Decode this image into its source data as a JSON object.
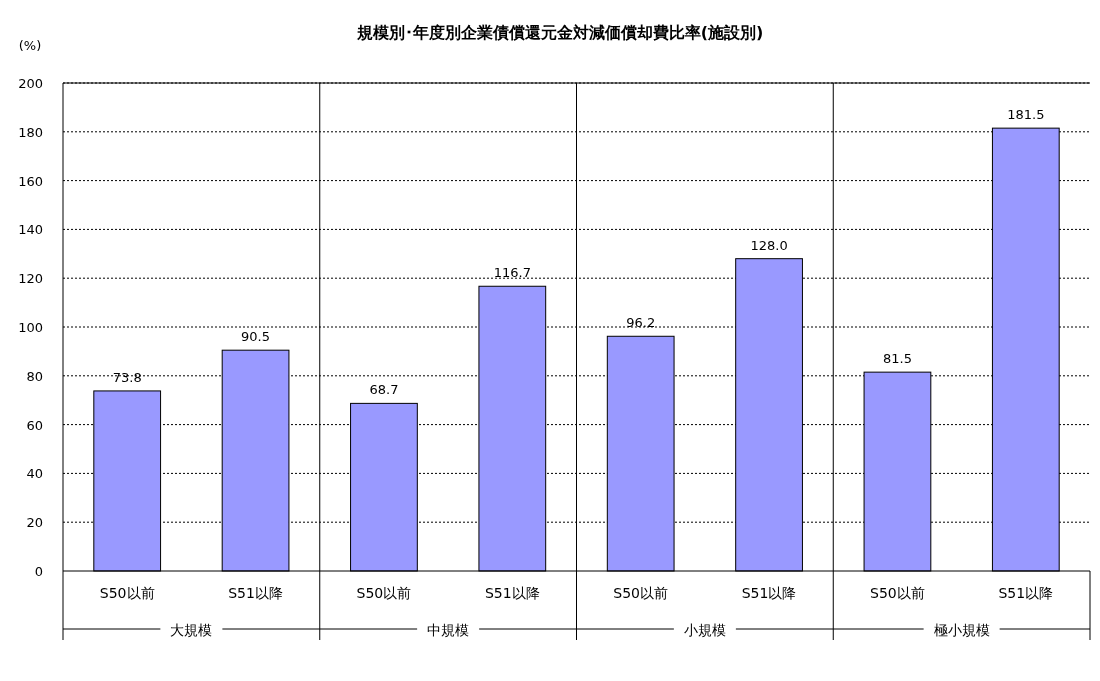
{
  "chart_data": {
    "type": "bar",
    "title": "規模別･年度別企業債償還元金対減価償却費比率(施設別)",
    "ylabel": "(%)",
    "categories": [
      "S50以前",
      "S51以降",
      "S50以前",
      "S51以降",
      "S50以前",
      "S51以降",
      "S50以前",
      "S51以降"
    ],
    "values": [
      73.8,
      90.5,
      68.7,
      116.7,
      96.2,
      128.0,
      81.5,
      181.5
    ],
    "value_labels": [
      "73.8",
      "90.5",
      "68.7",
      "116.7",
      "96.2",
      "128.0",
      "81.5",
      "181.5"
    ],
    "color": "#9999ff",
    "ylim": [
      0,
      200
    ],
    "yticks": [
      0,
      20,
      40,
      60,
      80,
      100,
      120,
      140,
      160,
      180,
      200
    ],
    "grid": "y",
    "annotations": [
      "大規模",
      "中規模",
      "小規模",
      "極小規模"
    ]
  }
}
